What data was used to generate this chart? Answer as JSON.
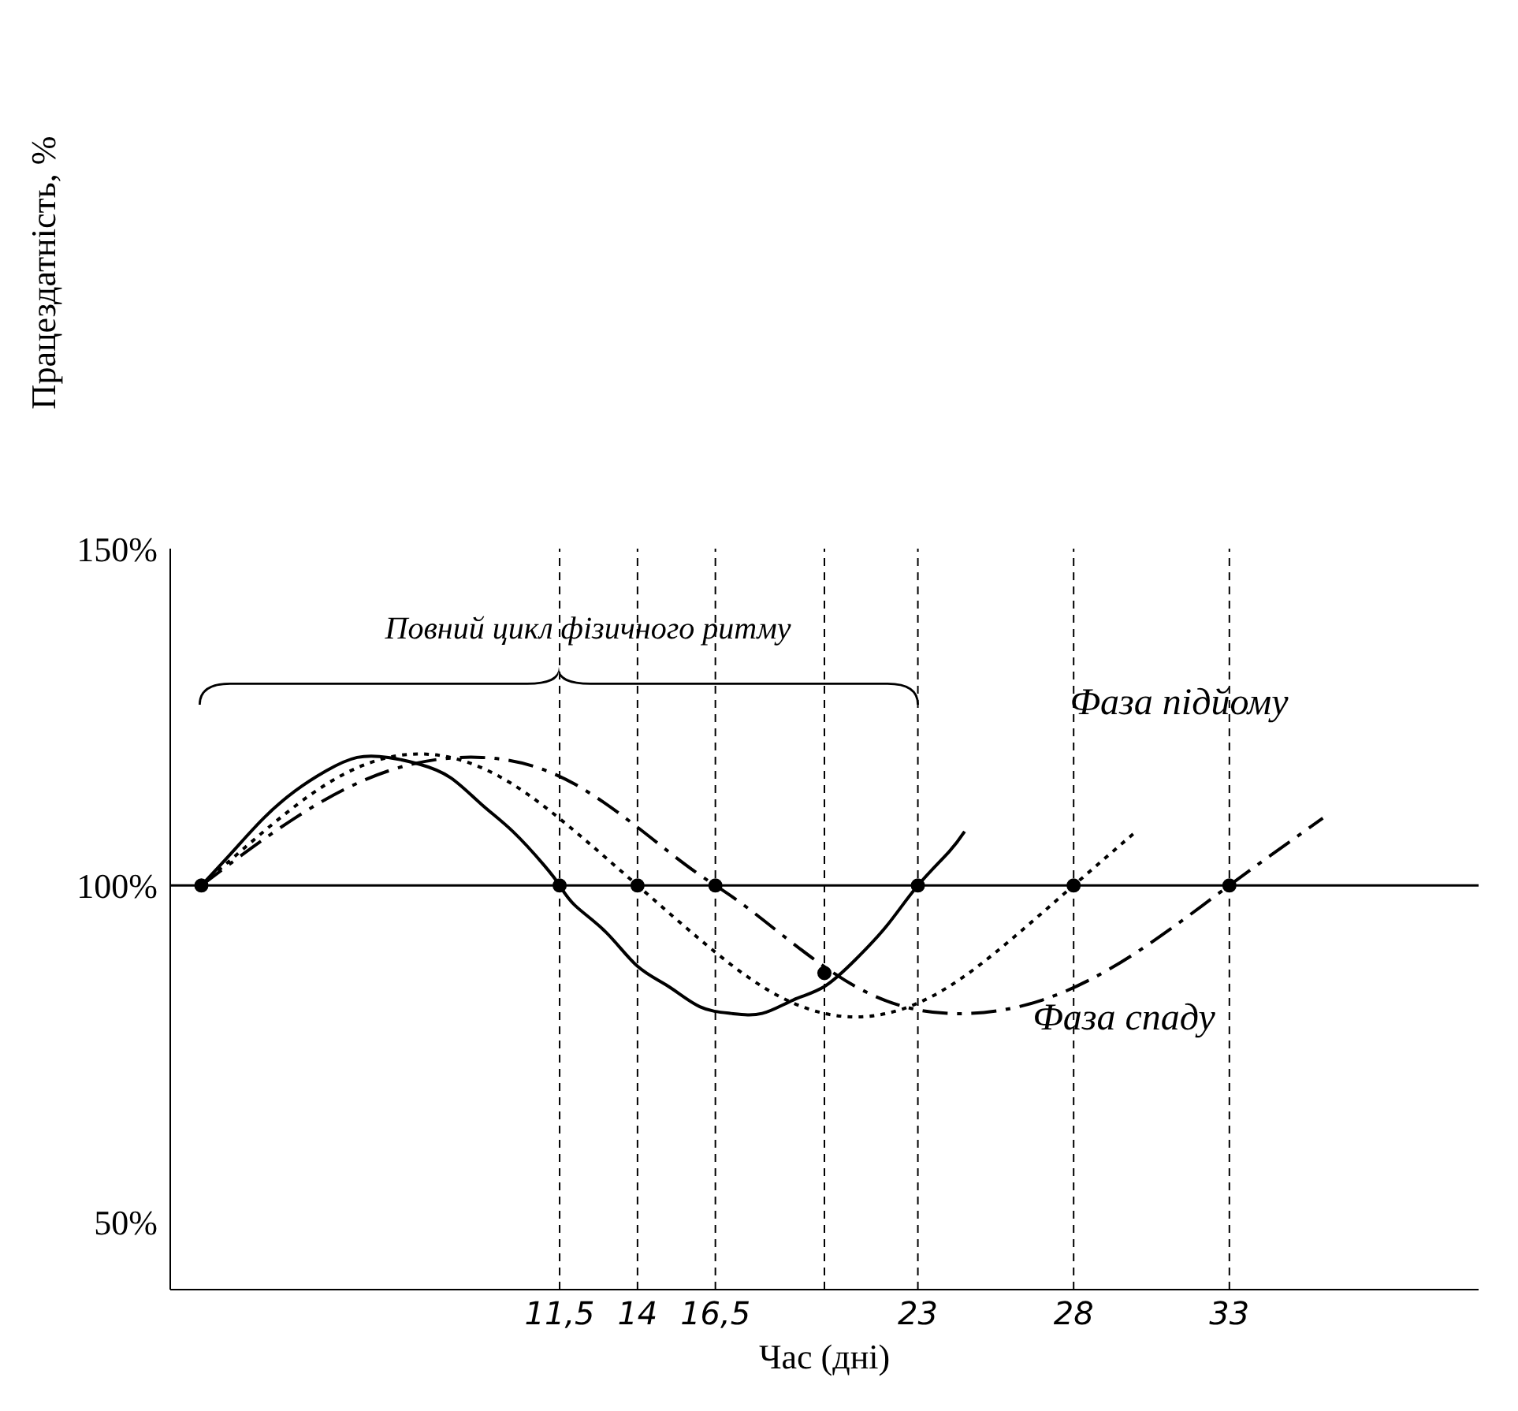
{
  "chart_data": {
    "type": "line",
    "ylabel": "Працездатність, %",
    "xlabel": "Час (дні)",
    "xlim": [
      -1,
      41
    ],
    "ylim": [
      40,
      150
    ],
    "xticks": [
      {
        "value": 11.5,
        "label": "11,5"
      },
      14,
      {
        "value": 16.5,
        "label": "16,5"
      },
      23,
      28,
      33
    ],
    "yticks": [
      {
        "value": 50,
        "label": "50%"
      },
      {
        "value": 100,
        "label": "100%"
      },
      {
        "value": 150,
        "label": "150%"
      }
    ],
    "grid": false,
    "legend": false,
    "series": [
      {
        "color": "#000000",
        "line_style": "solid",
        "marker": "none",
        "x": [
          0,
          1,
          2,
          3,
          4,
          5,
          6,
          7,
          8,
          9,
          10,
          11,
          11.5,
          12,
          13,
          14,
          15,
          16,
          17,
          18,
          19,
          20,
          21,
          22,
          23,
          24,
          24.5
        ],
        "values": [
          100,
          105,
          110,
          114,
          117,
          119,
          119,
          118,
          116,
          112,
          108,
          103,
          100,
          97,
          93,
          88,
          85,
          82,
          81,
          81,
          83,
          85,
          89,
          94,
          100,
          105,
          108
        ]
      },
      {
        "color": "#000000",
        "line_style": "dotted",
        "marker": "none",
        "x": [
          0,
          2,
          4,
          6,
          8,
          10,
          12,
          14,
          16,
          18,
          20,
          22,
          24,
          26,
          28,
          30
        ],
        "values": [
          100,
          108,
          115,
          119,
          119,
          115,
          108,
          100,
          92,
          85,
          81,
          81,
          85,
          92,
          100,
          108
        ]
      },
      {
        "color": "#000000",
        "line_style": "dashed",
        "marker": "none",
        "x": [
          0,
          3,
          6,
          9,
          12,
          15,
          16.5,
          18,
          21,
          24,
          27,
          30,
          33,
          36
        ],
        "values": [
          100,
          110,
          117,
          119,
          115,
          105,
          100,
          95,
          85,
          81,
          83,
          90,
          100,
          110
        ]
      },
      {
        "type": "scatter",
        "color": "#000000",
        "marker": "circle",
        "x": [
          0,
          11.5,
          14,
          16.5,
          20,
          23,
          28,
          33
        ],
        "values": [
          100,
          100,
          100,
          100,
          87,
          100,
          100,
          100
        ]
      }
    ],
    "ref_lines": [
      {
        "axis": "y",
        "value": 100,
        "line_style": "solid"
      },
      {
        "axis": "x",
        "value": 11.5,
        "line_style": "dashed"
      },
      {
        "axis": "x",
        "value": 14,
        "line_style": "dashed"
      },
      {
        "axis": "x",
        "value": 16.5,
        "line_style": "dashed"
      },
      {
        "axis": "x",
        "value": 20,
        "line_style": "dashed"
      },
      {
        "axis": "x",
        "value": 23,
        "line_style": "dashed"
      },
      {
        "axis": "x",
        "value": 28,
        "line_style": "dashed"
      },
      {
        "axis": "x",
        "value": 33,
        "line_style": "dashed"
      }
    ],
    "annotations": [
      "Повний цикл фізичного ритму",
      "Фаза підйому",
      "Фаза спаду"
    ]
  }
}
